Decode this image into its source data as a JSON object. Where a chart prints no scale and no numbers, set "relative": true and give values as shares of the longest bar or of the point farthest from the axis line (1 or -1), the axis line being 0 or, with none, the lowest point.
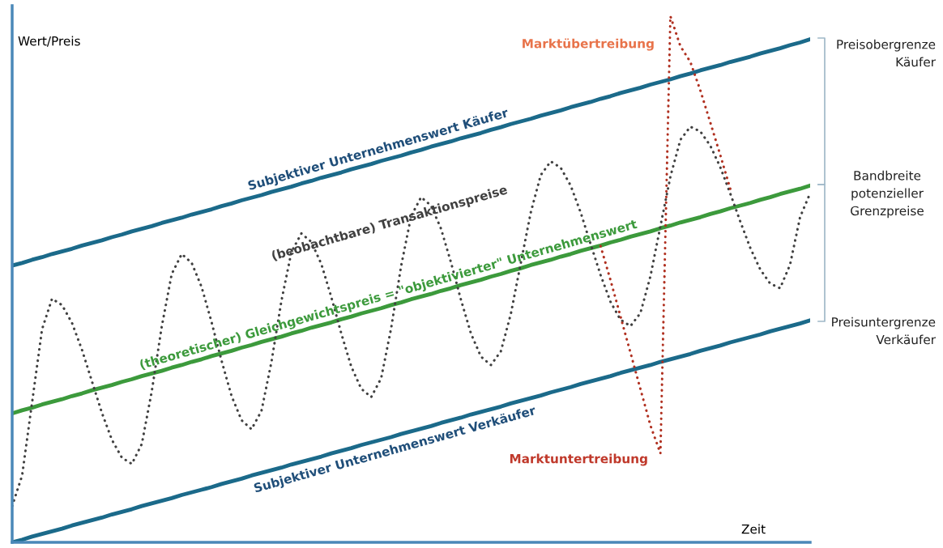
{
  "chart_data": {
    "type": "line",
    "relative": true,
    "ylabel": "Wert/Preis",
    "xlabel": "Zeit",
    "legend": false,
    "categories": [
      null,
      null,
      null,
      null,
      null,
      null,
      null,
      null,
      null,
      null,
      null,
      null,
      null,
      null,
      null,
      null,
      null,
      null,
      null,
      null,
      null,
      null,
      null,
      null,
      null,
      null,
      null,
      null,
      null,
      null,
      null,
      null,
      null,
      null,
      null,
      null,
      null,
      null,
      null,
      null,
      null,
      null,
      null,
      null,
      null,
      null,
      null,
      null,
      null,
      null,
      null,
      null,
      null,
      null,
      null,
      null,
      null,
      null,
      null,
      null,
      null,
      null,
      null,
      null,
      null,
      null,
      null,
      null,
      null,
      null,
      null,
      null,
      null,
      null,
      null,
      null,
      null,
      null,
      null,
      null,
      null
    ],
    "series": [
      {
        "name": "Subjektiver Unternehmenswert Käufer",
        "color": "#1b6a8a",
        "line_style": "solid",
        "values": [
          0.526,
          0.531,
          0.537,
          0.542,
          0.548,
          0.553,
          0.558,
          0.564,
          0.569,
          0.574,
          0.58,
          0.585,
          0.591,
          0.596,
          0.601,
          0.607,
          0.612,
          0.617,
          0.623,
          0.628,
          0.633,
          0.639,
          0.644,
          0.65,
          0.655,
          0.66,
          0.666,
          0.671,
          0.676,
          0.682,
          0.687,
          0.693,
          0.698,
          0.703,
          0.709,
          0.714,
          0.719,
          0.725,
          0.73,
          0.735,
          0.741,
          0.746,
          0.752,
          0.757,
          0.762,
          0.768,
          0.773,
          0.778,
          0.784,
          0.789,
          0.795,
          0.8,
          0.805,
          0.811,
          0.816,
          0.821,
          0.827,
          0.832,
          0.837,
          0.843,
          0.848,
          0.854,
          0.859,
          0.864,
          0.87,
          0.875,
          0.88,
          0.886,
          0.891,
          0.897,
          0.902,
          0.907,
          0.913,
          0.918,
          0.923,
          0.929,
          0.934,
          0.939,
          0.945,
          0.95,
          0.956
        ]
      },
      {
        "name": "(theoretischer) Gleichgewichtspreis = \"objektivierter\" Unternehmenswert",
        "color": "#3c9a3c",
        "line_style": "solid",
        "values": [
          0.245,
          0.251,
          0.256,
          0.262,
          0.267,
          0.272,
          0.278,
          0.283,
          0.289,
          0.294,
          0.299,
          0.305,
          0.31,
          0.316,
          0.321,
          0.326,
          0.332,
          0.337,
          0.343,
          0.348,
          0.354,
          0.359,
          0.364,
          0.37,
          0.375,
          0.381,
          0.386,
          0.391,
          0.397,
          0.402,
          0.408,
          0.413,
          0.418,
          0.424,
          0.429,
          0.435,
          0.44,
          0.445,
          0.451,
          0.456,
          0.462,
          0.467,
          0.472,
          0.478,
          0.483,
          0.489,
          0.494,
          0.499,
          0.505,
          0.51,
          0.516,
          0.521,
          0.527,
          0.532,
          0.537,
          0.543,
          0.548,
          0.554,
          0.559,
          0.564,
          0.57,
          0.575,
          0.581,
          0.586,
          0.591,
          0.597,
          0.602,
          0.608,
          0.613,
          0.618,
          0.624,
          0.629,
          0.635,
          0.64,
          0.645,
          0.651,
          0.656,
          0.662,
          0.667,
          0.672,
          0.678
        ]
      },
      {
        "name": "Subjektiver Unternehmenswert Verkäufer",
        "color": "#1b6a8a",
        "line_style": "solid",
        "values": [
          0,
          0.005,
          0.011,
          0.016,
          0.021,
          0.026,
          0.032,
          0.037,
          0.042,
          0.047,
          0.053,
          0.058,
          0.063,
          0.069,
          0.074,
          0.079,
          0.084,
          0.09,
          0.095,
          0.1,
          0.105,
          0.111,
          0.116,
          0.121,
          0.127,
          0.132,
          0.137,
          0.142,
          0.148,
          0.153,
          0.158,
          0.163,
          0.169,
          0.174,
          0.179,
          0.185,
          0.19,
          0.195,
          0.2,
          0.206,
          0.211,
          0.216,
          0.221,
          0.227,
          0.232,
          0.237,
          0.243,
          0.248,
          0.253,
          0.258,
          0.264,
          0.269,
          0.274,
          0.279,
          0.285,
          0.29,
          0.295,
          0.301,
          0.306,
          0.311,
          0.316,
          0.322,
          0.327,
          0.332,
          0.337,
          0.343,
          0.348,
          0.353,
          0.358,
          0.364,
          0.369,
          0.374,
          0.38,
          0.385,
          0.39,
          0.395,
          0.401,
          0.406,
          0.411,
          0.416,
          0.422
        ]
      },
      {
        "name": "(beobachtbare) Transaktionspreise",
        "color": "#404040",
        "line_style": "dotted",
        "values": [
          0.069,
          0.127,
          0.266,
          0.405,
          0.463,
          0.451,
          0.417,
          0.366,
          0.306,
          0.246,
          0.195,
          0.161,
          0.149,
          0.187,
          0.287,
          0.41,
          0.51,
          0.548,
          0.531,
          0.485,
          0.418,
          0.345,
          0.278,
          0.232,
          0.215,
          0.25,
          0.343,
          0.459,
          0.552,
          0.587,
          0.571,
          0.529,
          0.466,
          0.397,
          0.334,
          0.292,
          0.276,
          0.312,
          0.407,
          0.525,
          0.62,
          0.656,
          0.64,
          0.596,
          0.532,
          0.461,
          0.397,
          0.353,
          0.337,
          0.363,
          0.434,
          0.531,
          0.627,
          0.698,
          0.724,
          0.712,
          0.678,
          0.627,
          0.567,
          0.508,
          0.457,
          0.423,
          0.411,
          0.436,
          0.506,
          0.601,
          0.695,
          0.765,
          0.79,
          0.781,
          0.754,
          0.713,
          0.663,
          0.61,
          0.56,
          0.519,
          0.492,
          0.483,
          0.528,
          0.618,
          0.663
        ]
      },
      {
        "color": "#b03020",
        "line_style": "dotted",
        "values": [
          null,
          null,
          null,
          null,
          null,
          null,
          null,
          null,
          null,
          null,
          null,
          null,
          null,
          null,
          null,
          null,
          null,
          null,
          null,
          null,
          null,
          null,
          null,
          null,
          null,
          null,
          null,
          null,
          null,
          null,
          null,
          null,
          null,
          null,
          null,
          null,
          null,
          null,
          null,
          null,
          null,
          null,
          null,
          null,
          null,
          null,
          null,
          null,
          null,
          null,
          null,
          null,
          null,
          null,
          null,
          null,
          null,
          null,
          null,
          0.563,
          0.498,
          0.429,
          0.36,
          0.291,
          0.222,
          0.169,
          1.0,
          0.943,
          0.913,
          0.859,
          0.798,
          0.736,
          0.672,
          null,
          null,
          null,
          null,
          null,
          null,
          null,
          null
        ]
      }
    ],
    "annotations": [
      "Marktübertreibung",
      "Marktuntertreibung",
      "Preisobergrenze\nKäufer",
      "Bandbreite\npotenzieller\nGrenzpreise",
      "Preisuntergrenze\nVerkäufer"
    ]
  }
}
